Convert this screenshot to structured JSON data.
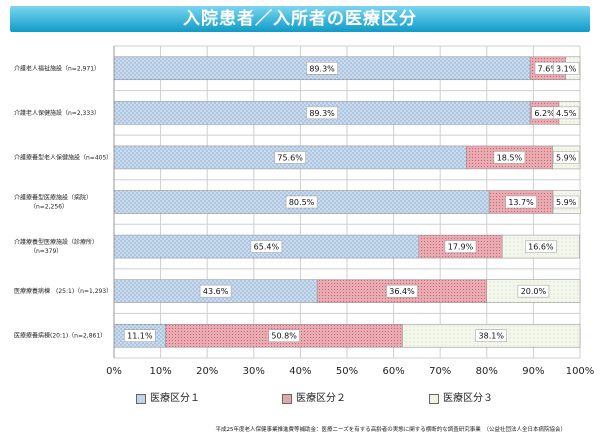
{
  "page": {
    "title": "入院患者／入所者の医療区分",
    "source": "平成25年度老人保健事業推進費等補助金：医療ニーズを有する高齢者の実態に関する横断的な調査研究事業　（公益社団法人全日本病院協会）"
  },
  "colors": {
    "title_band": "#1aa3d4",
    "seg1": "#bfd5ec",
    "seg2": "#e6a6ae",
    "seg3": "#eef3e4",
    "grid": "#cfcfcf"
  },
  "chart_data": {
    "type": "bar",
    "orientation": "horizontal",
    "stacked": "percent",
    "categories": [
      "介護老人福祉施設（n=2,971）",
      "介護老人保健施設（n=2,333）",
      "介護療養型老人保健施設（n=405）",
      "介護療養型医療施設（病院）（n=2,256）",
      "介護療養型医療施設（診療所）（n=379）",
      "医療療養病棟　(25:1)（n=1,293）",
      "医療療養病棟(20:1)（n=2,861）"
    ],
    "series": [
      {
        "name": "医療区分１",
        "values": [
          89.3,
          89.3,
          75.6,
          80.5,
          65.4,
          43.6,
          11.1
        ]
      },
      {
        "name": "医療区分２",
        "values": [
          7.6,
          6.2,
          18.5,
          13.7,
          17.9,
          36.4,
          50.8
        ]
      },
      {
        "name": "医療区分３",
        "values": [
          3.1,
          4.5,
          5.9,
          5.9,
          16.6,
          20.0,
          38.1
        ]
      }
    ],
    "value_labels": [
      [
        "89.3%",
        "7.6%",
        "3.1%"
      ],
      [
        "89.3%",
        "6.2%",
        "4.5%"
      ],
      [
        "75.6%",
        "18.5%",
        "5.9%"
      ],
      [
        "80.5%",
        "13.7%",
        "5.9%"
      ],
      [
        "65.4%",
        "17.9%",
        "16.6%"
      ],
      [
        "43.6%",
        "36.4%",
        "20.0%"
      ],
      [
        "11.1%",
        "50.8%",
        "38.1%"
      ]
    ],
    "xlim": [
      0,
      100
    ],
    "xticks": [
      "0%",
      "10%",
      "20%",
      "30%",
      "40%",
      "50%",
      "60%",
      "70%",
      "80%",
      "90%",
      "100%"
    ],
    "grid": true,
    "legend_position": "bottom"
  }
}
